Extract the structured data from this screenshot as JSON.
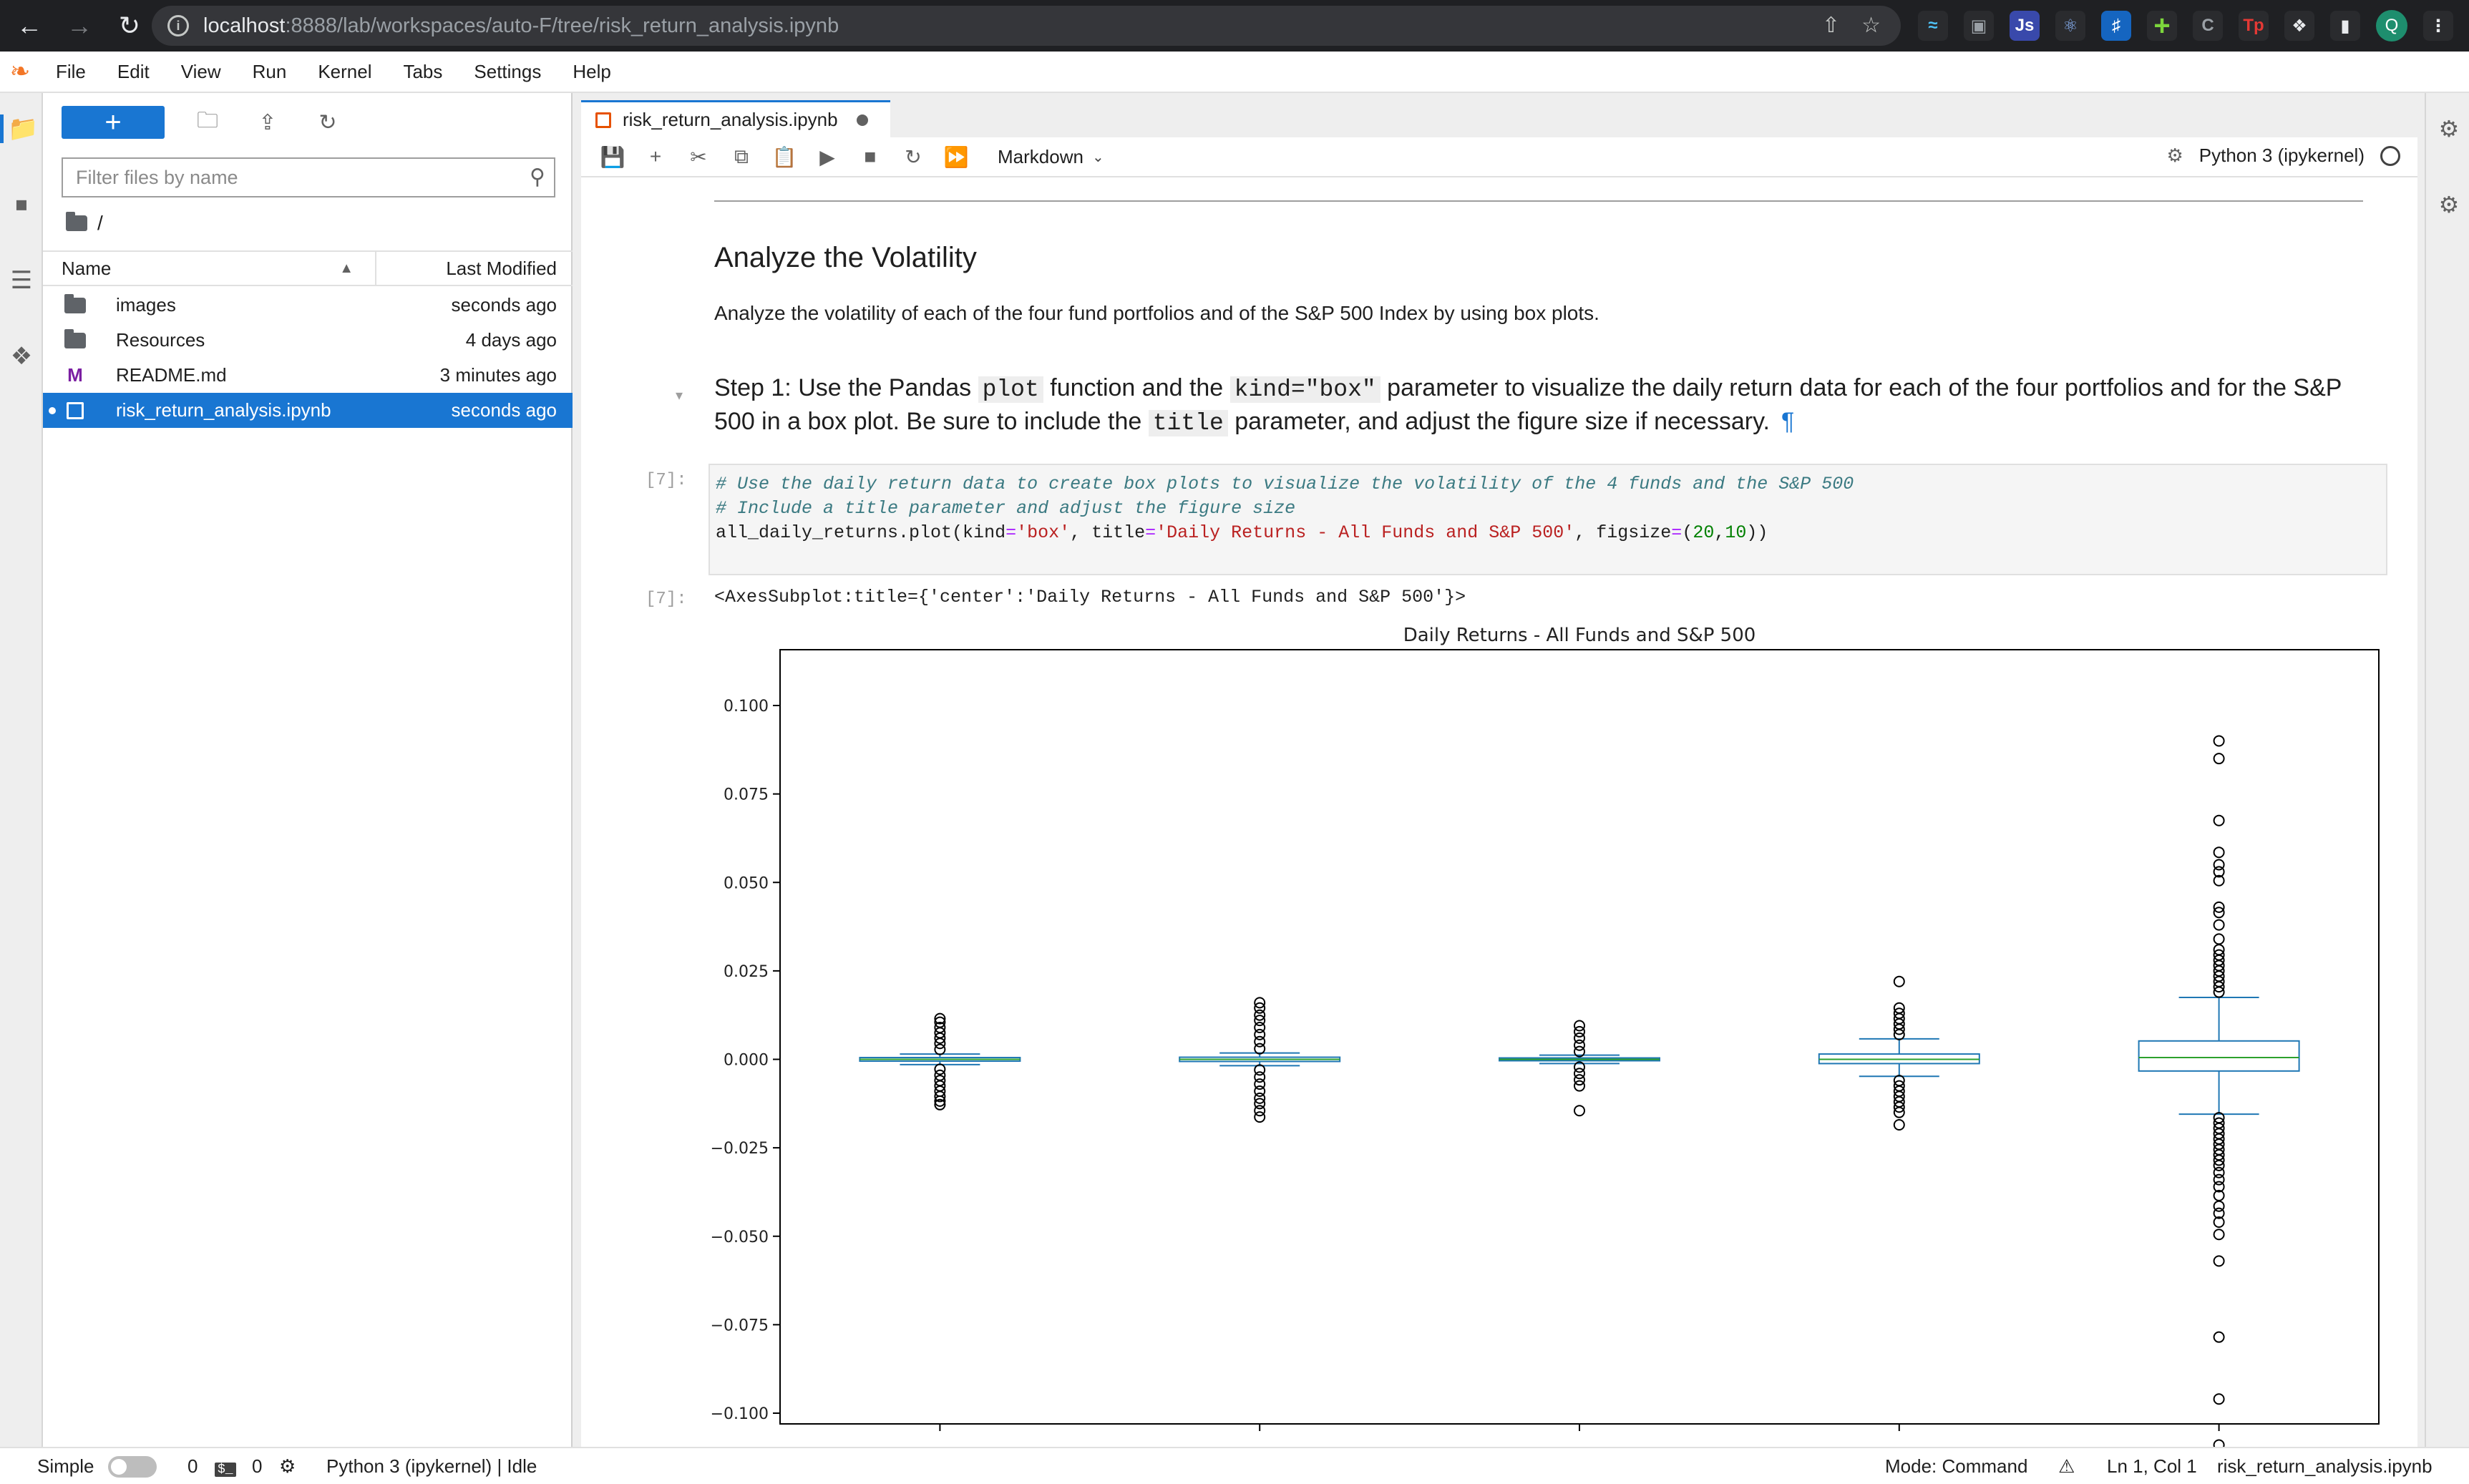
{
  "browser": {
    "url_host": "localhost",
    "url_rest": ":8888/lab/workspaces/auto-F/tree/risk_return_analysis.ipynb",
    "profile_initial": "Q"
  },
  "menu": [
    "File",
    "Edit",
    "View",
    "Run",
    "Kernel",
    "Tabs",
    "Settings",
    "Help"
  ],
  "filebrowser": {
    "filter_placeholder": "Filter files by name",
    "breadcrumb": "/",
    "col_name": "Name",
    "col_modified": "Last Modified",
    "items": [
      {
        "name": "images",
        "modified": "seconds ago",
        "kind": "folder"
      },
      {
        "name": "Resources",
        "modified": "4 days ago",
        "kind": "folder"
      },
      {
        "name": "README.md",
        "modified": "3 minutes ago",
        "kind": "markdown"
      },
      {
        "name": "risk_return_analysis.ipynb",
        "modified": "seconds ago",
        "kind": "notebook"
      }
    ]
  },
  "tab": {
    "title": "risk_return_analysis.ipynb"
  },
  "toolbar": {
    "cell_type": "Markdown",
    "kernel": "Python 3 (ipykernel)"
  },
  "notebook": {
    "heading": "Analyze the Volatility",
    "description": "Analyze the volatility of each of the four fund portfolios and of the S&P 500 Index by using box plots.",
    "step_parts": {
      "a": "Step 1: Use the Pandas ",
      "code1": "plot",
      "b": " function and the ",
      "code2": "kind=\"box\"",
      "c": " parameter to visualize the daily return data for each of the four portfolios and for the S&P 500 in a box plot. Be sure to include the ",
      "code3": "title",
      "d": " parameter, and adjust the figure size if necessary.",
      "pilcrow": "¶"
    },
    "in_prompt": "[7]:",
    "out_prompt": "[7]:",
    "code_lines": {
      "line1": "# Use the daily return data to create box plots to visualize the volatility of the 4 funds and the S&P 500",
      "line2": "# Include a title parameter and adjust the figure size",
      "line3_a": "all_daily_returns.",
      "line3_b": "plot(kind",
      "line3_c": "=",
      "line3_d": "'box'",
      "line3_e": ", title",
      "line3_f": "=",
      "line3_g": "'Daily Returns - All Funds and S&P 500'",
      "line3_h": ", figsize",
      "line3_i": "=",
      "line3_j": "(",
      "line3_k": "20",
      "line3_l": ",",
      "line3_m": "10",
      "line3_n": "))"
    },
    "output_text": "<AxesSubplot:title={'center':'Daily Returns - All Funds and S&P 500'}>"
  },
  "chart_data": {
    "type": "box",
    "title": "Daily Returns - All Funds and S&P 500",
    "xlabel": "",
    "ylabel": "",
    "ylim": [
      -0.11,
      0.1
    ],
    "y_ticks": [
      "0.100",
      "0.075",
      "0.050",
      "0.025",
      "0.000",
      "−0.025",
      "−0.050",
      "−0.075",
      "−0.100"
    ],
    "y_tick_values": [
      0.1,
      0.075,
      0.05,
      0.025,
      0.0,
      -0.025,
      -0.05,
      -0.075,
      -0.1
    ],
    "boxes": [
      {
        "q1": -0.0005,
        "median": 0.0,
        "q3": 0.0005,
        "whisker_low": -0.0015,
        "whisker_high": 0.0015,
        "outliers_high": [
          0.0028,
          0.0045,
          0.006,
          0.0075,
          0.009,
          0.0105,
          0.0115
        ],
        "outliers_low": [
          -0.0028,
          -0.0045,
          -0.006,
          -0.0075,
          -0.009,
          -0.0105,
          -0.0118,
          -0.0128
        ]
      },
      {
        "q1": -0.0006,
        "median": 0.0,
        "q3": 0.0006,
        "whisker_low": -0.0018,
        "whisker_high": 0.0018,
        "outliers_high": [
          0.003,
          0.005,
          0.007,
          0.009,
          0.011,
          0.0125,
          0.0145,
          0.016
        ],
        "outliers_low": [
          -0.003,
          -0.005,
          -0.007,
          -0.009,
          -0.011,
          -0.0125,
          -0.0145,
          -0.0163
        ]
      },
      {
        "q1": -0.0004,
        "median": 0.0,
        "q3": 0.0004,
        "whisker_low": -0.0012,
        "whisker_high": 0.0012,
        "outliers_high": [
          0.0022,
          0.004,
          0.006,
          0.0078,
          0.0095
        ],
        "outliers_low": [
          -0.0022,
          -0.004,
          -0.0058,
          -0.0075,
          -0.0145
        ]
      },
      {
        "q1": -0.0012,
        "median": 0.0,
        "q3": 0.0015,
        "whisker_low": -0.0048,
        "whisker_high": 0.0058,
        "outliers_high": [
          0.007,
          0.0085,
          0.01,
          0.0115,
          0.013,
          0.0145,
          0.022
        ],
        "outliers_low": [
          -0.006,
          -0.0075,
          -0.009,
          -0.0105,
          -0.012,
          -0.0135,
          -0.015,
          -0.0185
        ]
      },
      {
        "q1": -0.0033,
        "median": 0.0005,
        "q3": 0.0052,
        "whisker_low": -0.0155,
        "whisker_high": 0.0175,
        "outliers_high": [
          0.019,
          0.0205,
          0.022,
          0.0235,
          0.025,
          0.0265,
          0.028,
          0.0295,
          0.031,
          0.034,
          0.038,
          0.0415,
          0.043,
          0.0505,
          0.053,
          0.055,
          0.0585,
          0.0675,
          0.085,
          0.09
        ],
        "outliers_low": [
          -0.0165,
          -0.018,
          -0.0195,
          -0.021,
          -0.0225,
          -0.024,
          -0.0255,
          -0.027,
          -0.0285,
          -0.03,
          -0.032,
          -0.034,
          -0.036,
          -0.0385,
          -0.0415,
          -0.0435,
          -0.046,
          -0.0495,
          -0.057,
          -0.0785,
          -0.096,
          -0.109
        ]
      }
    ]
  },
  "statusbar": {
    "mode_label": "Simple",
    "terminals": "0",
    "kernels": "0",
    "kernel_status": "Python 3 (ipykernel) | Idle",
    "mode": "Mode: Command",
    "cursor": "Ln 1, Col 1",
    "filename": "risk_return_analysis.ipynb"
  },
  "colors": {
    "accent": "#1976d2",
    "box": "#1f77b4",
    "median": "#2ca02c"
  },
  "icons": [
    "back-icon",
    "forward-icon",
    "reload-icon",
    "info-icon",
    "share-icon",
    "star-icon",
    "folder-icon",
    "stop-icon",
    "toc-icon",
    "extension-icon",
    "gear-icon",
    "bug-icon",
    "search-icon",
    "save-icon",
    "plus-icon",
    "cut-icon",
    "copy-icon",
    "paste-icon",
    "run-icon",
    "stop-square-icon",
    "restart-icon",
    "fast-forward-icon"
  ]
}
